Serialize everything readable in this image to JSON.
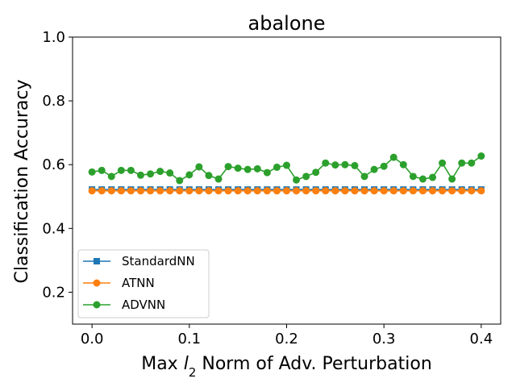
{
  "chart_data": {
    "type": "line",
    "title": "abalone",
    "xlabel_parts": [
      "Max ",
      "l",
      "2",
      " Norm of Adv. Perturbation"
    ],
    "ylabel": "Classification Accuracy",
    "xlim": [
      -0.02,
      0.42
    ],
    "ylim": [
      0.1,
      1.0
    ],
    "xticks": [
      0.0,
      0.1,
      0.2,
      0.3,
      0.4
    ],
    "xtick_labels": [
      "0.0",
      "0.1",
      "0.2",
      "0.3",
      "0.4"
    ],
    "yticks": [
      0.2,
      0.4,
      0.6,
      0.8,
      1.0
    ],
    "ytick_labels": [
      "0.2",
      "0.4",
      "0.6",
      "0.8",
      "1.0"
    ],
    "grid": false,
    "legend_position": "lower-left",
    "x": [
      0.0,
      0.01,
      0.02,
      0.03,
      0.04,
      0.05,
      0.06,
      0.07,
      0.08,
      0.09,
      0.1,
      0.11,
      0.12,
      0.13,
      0.14,
      0.15,
      0.16,
      0.17,
      0.18,
      0.19,
      0.2,
      0.21,
      0.22,
      0.23,
      0.24,
      0.25,
      0.26,
      0.27,
      0.28,
      0.29,
      0.3,
      0.31,
      0.32,
      0.33,
      0.34,
      0.35,
      0.36,
      0.37,
      0.38,
      0.39,
      0.4
    ],
    "series": [
      {
        "name": "StandardNN",
        "color": "#1f77b4",
        "marker": "square",
        "values": [
          0.522,
          0.522,
          0.522,
          0.522,
          0.522,
          0.522,
          0.522,
          0.522,
          0.522,
          0.522,
          0.522,
          0.522,
          0.522,
          0.522,
          0.522,
          0.522,
          0.522,
          0.522,
          0.522,
          0.522,
          0.522,
          0.522,
          0.522,
          0.522,
          0.522,
          0.522,
          0.522,
          0.522,
          0.522,
          0.522,
          0.522,
          0.522,
          0.522,
          0.522,
          0.522,
          0.522,
          0.522,
          0.522,
          0.522,
          0.522,
          0.522
        ]
      },
      {
        "name": "ATNN",
        "color": "#ff7f0e",
        "marker": "circle",
        "values": [
          0.518,
          0.518,
          0.518,
          0.518,
          0.518,
          0.518,
          0.518,
          0.518,
          0.518,
          0.518,
          0.518,
          0.518,
          0.518,
          0.518,
          0.518,
          0.518,
          0.518,
          0.518,
          0.518,
          0.518,
          0.518,
          0.518,
          0.518,
          0.518,
          0.518,
          0.518,
          0.518,
          0.518,
          0.518,
          0.518,
          0.518,
          0.518,
          0.518,
          0.518,
          0.518,
          0.518,
          0.518,
          0.518,
          0.518,
          0.518,
          0.518
        ]
      },
      {
        "name": "ADVNN",
        "color": "#2ca02c",
        "marker": "circle",
        "values": [
          0.577,
          0.582,
          0.563,
          0.582,
          0.582,
          0.567,
          0.571,
          0.579,
          0.574,
          0.55,
          0.568,
          0.593,
          0.566,
          0.555,
          0.594,
          0.589,
          0.585,
          0.587,
          0.575,
          0.592,
          0.598,
          0.552,
          0.563,
          0.576,
          0.605,
          0.599,
          0.6,
          0.597,
          0.563,
          0.585,
          0.595,
          0.623,
          0.6,
          0.563,
          0.555,
          0.56,
          0.605,
          0.555,
          0.605,
          0.605,
          0.627
        ]
      }
    ]
  }
}
